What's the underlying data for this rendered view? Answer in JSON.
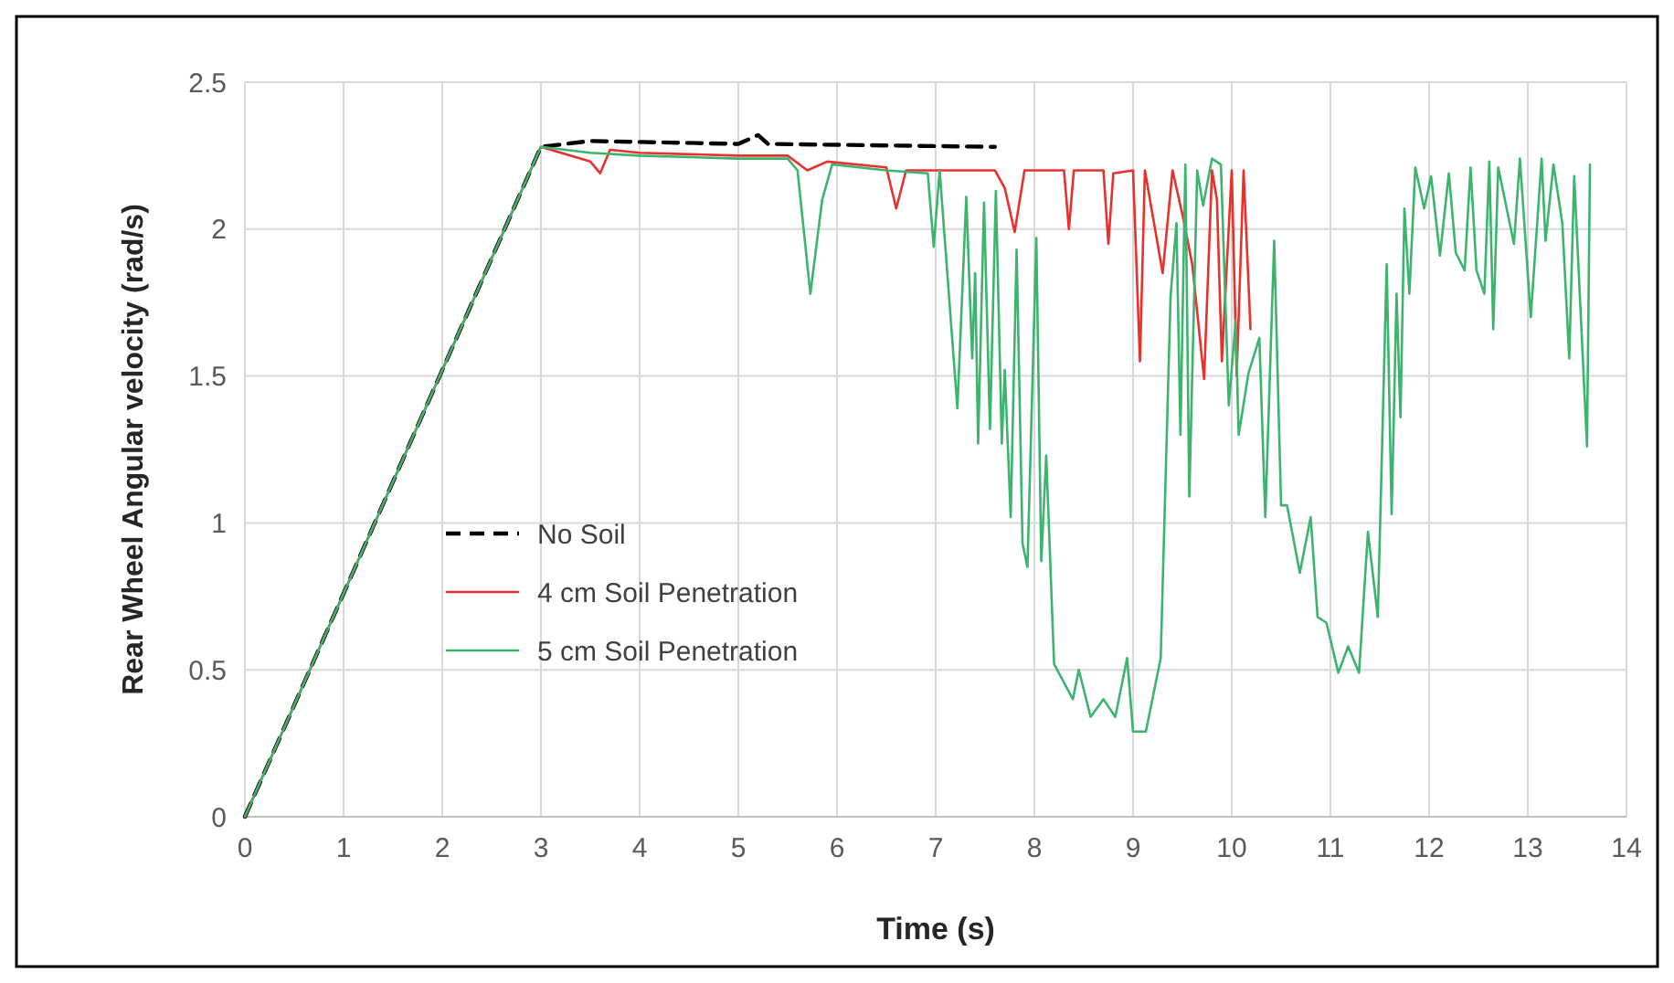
{
  "chart_data": {
    "type": "line",
    "xlabel": "Time (s)",
    "ylabel": "Rear Wheel Angular velocity (rad/s)",
    "xlim": [
      0,
      14
    ],
    "ylim": [
      0,
      2.5
    ],
    "xticks": [
      0,
      1,
      2,
      3,
      4,
      5,
      6,
      7,
      8,
      9,
      10,
      11,
      12,
      13,
      14
    ],
    "yticks": [
      0,
      {
        "value": 0.5,
        "label": "0.5"
      },
      1,
      {
        "value": 1.5,
        "label": "1.5"
      },
      2,
      {
        "value": 2.5,
        "label": "2.5"
      }
    ],
    "grid": true,
    "legend": "bottom left",
    "marker": "none",
    "series": [
      {
        "name": "No Soil",
        "color": "#000000",
        "line_style": "dashed",
        "x": [
          0,
          3,
          3.5,
          5,
          5.2,
          5.3,
          7.6
        ],
        "values": [
          0,
          2.28,
          2.3,
          2.29,
          2.32,
          2.29,
          2.28
        ]
      },
      {
        "name": "4 cm Soil Penetration",
        "color": "#e8312c",
        "line_style": "solid",
        "x": [
          0,
          3,
          3.5,
          3.6,
          3.7,
          4,
          5,
          5.5,
          5.7,
          5.9,
          6.5,
          6.6,
          6.7,
          7,
          7.6,
          7.7,
          7.8,
          7.9,
          8.3,
          8.35,
          8.4,
          8.7,
          8.75,
          8.8,
          9,
          9.07,
          9.12,
          9.3,
          9.4,
          9.5,
          9.6,
          9.72,
          9.8,
          9.85,
          9.9,
          10,
          10.05,
          10.12,
          10.19
        ],
        "values": [
          0,
          2.28,
          2.23,
          2.19,
          2.27,
          2.26,
          2.25,
          2.25,
          2.2,
          2.23,
          2.21,
          2.07,
          2.2,
          2.2,
          2.2,
          2.14,
          1.99,
          2.2,
          2.2,
          2.0,
          2.2,
          2.2,
          1.95,
          2.19,
          2.2,
          1.55,
          2.2,
          1.85,
          2.2,
          2.05,
          1.88,
          1.49,
          2.2,
          2.1,
          1.55,
          2.2,
          1.5,
          2.2,
          1.66
        ]
      },
      {
        "name": "5 cm Soil Penetration",
        "color": "#3cb46e",
        "line_style": "solid",
        "x": [
          0,
          3,
          3.5,
          4,
          5,
          5.5,
          5.6,
          5.73,
          5.85,
          5.95,
          6.5,
          6.92,
          6.98,
          7.04,
          7.22,
          7.31,
          7.37,
          7.4,
          7.43,
          7.49,
          7.55,
          7.61,
          7.67,
          7.7,
          7.76,
          7.82,
          7.88,
          7.93,
          8.02,
          8.07,
          8.12,
          8.2,
          8.39,
          8.45,
          8.57,
          8.7,
          8.82,
          8.94,
          9,
          9.13,
          9.28,
          9.38,
          9.44,
          9.48,
          9.53,
          9.57,
          9.65,
          9.71,
          9.8,
          9.89,
          9.97,
          10.04,
          10.07,
          10.17,
          10.28,
          10.34,
          10.43,
          10.5,
          10.56,
          10.69,
          10.8,
          10.87,
          10.96,
          11.08,
          11.18,
          11.29,
          11.38,
          11.48,
          11.57,
          11.62,
          11.67,
          11.71,
          11.75,
          11.8,
          11.86,
          11.95,
          12.02,
          12.11,
          12.2,
          12.27,
          12.36,
          12.42,
          12.48,
          12.56,
          12.61,
          12.65,
          12.7,
          12.86,
          12.92,
          13.03,
          13.14,
          13.18,
          13.26,
          13.35,
          13.42,
          13.47,
          13.6,
          13.63
        ],
        "values": [
          0,
          2.28,
          2.26,
          2.25,
          2.24,
          2.24,
          2.2,
          1.78,
          2.1,
          2.22,
          2.2,
          2.19,
          1.94,
          2.2,
          1.39,
          2.11,
          1.56,
          1.85,
          1.27,
          2.09,
          1.32,
          2.13,
          1.27,
          1.52,
          1.02,
          1.93,
          0.93,
          0.85,
          1.97,
          0.87,
          1.23,
          0.52,
          0.4,
          0.5,
          0.34,
          0.4,
          0.34,
          0.54,
          0.29,
          0.29,
          0.54,
          1.77,
          2.02,
          1.3,
          2.22,
          1.09,
          2.2,
          2.08,
          2.24,
          2.22,
          1.4,
          1.69,
          1.3,
          1.51,
          1.63,
          1.02,
          1.96,
          1.06,
          1.06,
          0.83,
          1.02,
          0.68,
          0.66,
          0.49,
          0.58,
          0.49,
          0.97,
          0.68,
          1.88,
          1.03,
          1.78,
          1.36,
          2.07,
          1.78,
          2.21,
          2.07,
          2.18,
          1.91,
          2.19,
          1.92,
          1.86,
          2.21,
          1.86,
          1.78,
          2.23,
          1.66,
          2.21,
          1.95,
          2.24,
          1.7,
          2.24,
          1.96,
          2.22,
          2.02,
          1.56,
          2.18,
          1.26,
          2.22
        ]
      }
    ]
  }
}
